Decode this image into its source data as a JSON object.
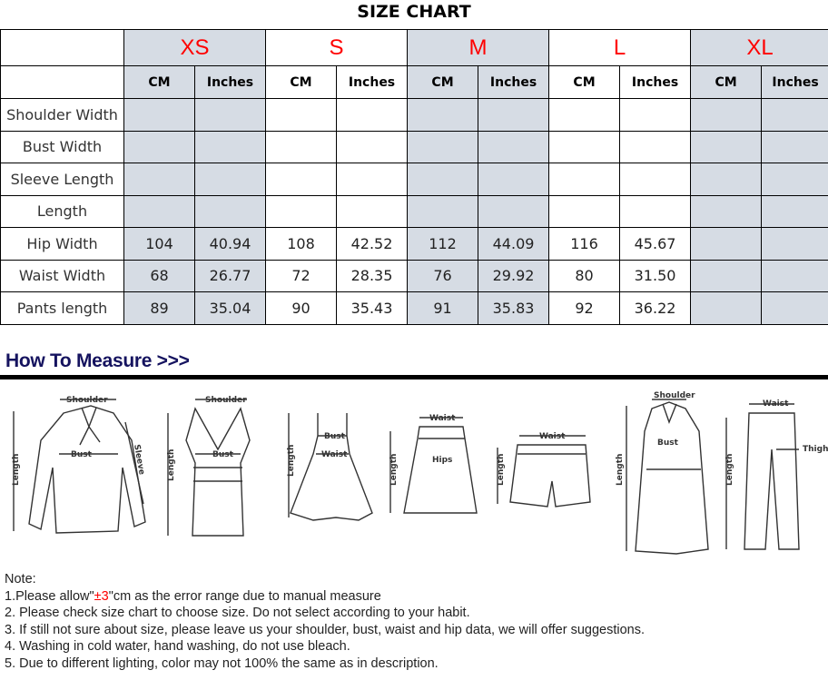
{
  "title": "SIZE CHART",
  "sizes": [
    "XS",
    "S",
    "M",
    "L",
    "XL"
  ],
  "units": {
    "cm": "CM",
    "inches": "Inches"
  },
  "rows": [
    {
      "label": "Shoulder Width",
      "values": [
        "",
        "",
        "",
        "",
        "",
        "",
        "",
        "",
        "",
        ""
      ]
    },
    {
      "label": "Bust Width",
      "values": [
        "",
        "",
        "",
        "",
        "",
        "",
        "",
        "",
        "",
        ""
      ]
    },
    {
      "label": "Sleeve Length",
      "values": [
        "",
        "",
        "",
        "",
        "",
        "",
        "",
        "",
        "",
        ""
      ]
    },
    {
      "label": "Length",
      "values": [
        "",
        "",
        "",
        "",
        "",
        "",
        "",
        "",
        "",
        ""
      ]
    },
    {
      "label": "Hip Width",
      "values": [
        "104",
        "40.94",
        "108",
        "42.52",
        "112",
        "44.09",
        "116",
        "45.67",
        "",
        ""
      ]
    },
    {
      "label": "Waist Width",
      "values": [
        "68",
        "26.77",
        "72",
        "28.35",
        "76",
        "29.92",
        "80",
        "31.50",
        "",
        ""
      ]
    },
    {
      "label": "Pants length",
      "values": [
        "89",
        "35.04",
        "90",
        "35.43",
        "91",
        "35.83",
        "92",
        "36.22",
        "",
        ""
      ]
    }
  ],
  "colors": {
    "shaded": "#d6dce4",
    "size_label": "#ff0000",
    "heading": "#15135f"
  },
  "how_to_measure": "How To Measure >>>",
  "measure_labels": {
    "shoulder": "Shoulder",
    "bust": "Bust",
    "sleeve": "Sleeve",
    "length": "Length",
    "waist": "Waist",
    "hips": "Hips",
    "thigh": "Thigh"
  },
  "notes": {
    "heading": "Note:",
    "n1_pre": "1.Please allow\"",
    "n1_red": "±3",
    "n1_post": "\"cm as the error range due to manual measure",
    "n2": "2. Please check size chart to choose size. Do not select according to your habit.",
    "n3": "3. If still not sure about size, please leave us your shoulder, bust, waist and hip data, we will offer suggestions.",
    "n4": "4. Washing in cold water, hand washing, do not use bleach.",
    "n5": "5. Due to different lighting, color may not 100% the same as in description."
  }
}
